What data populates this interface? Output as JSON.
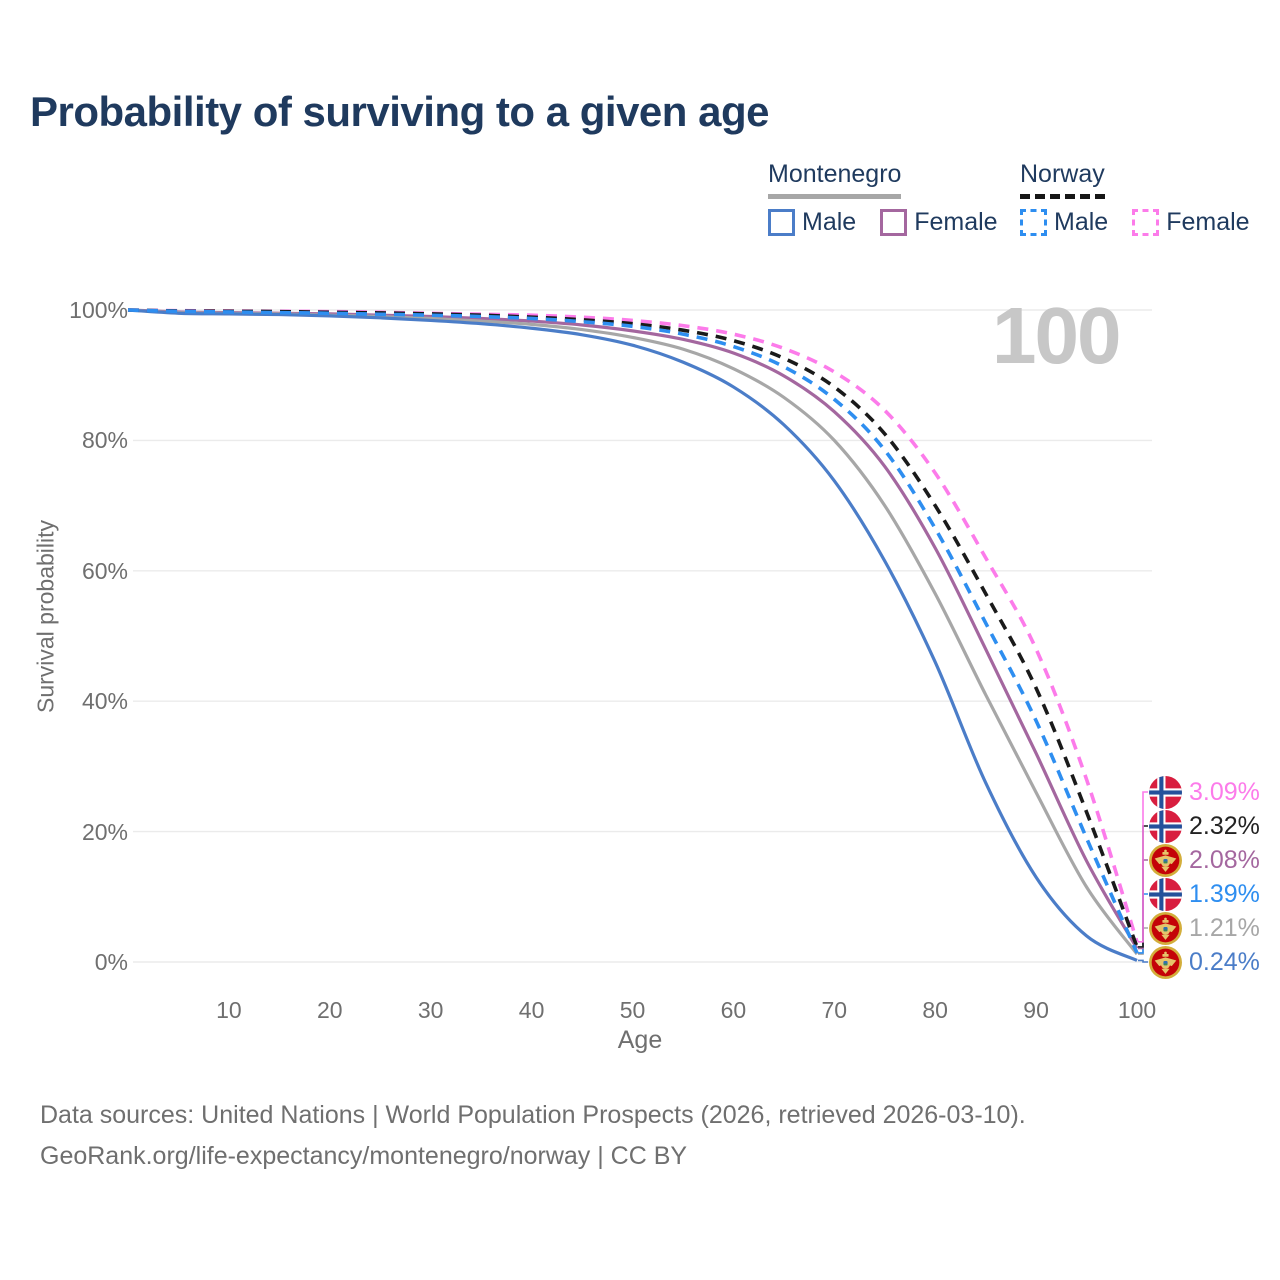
{
  "colors": {
    "title": "#1f3a5e",
    "axis_text": "#6f6f6f",
    "gridline": "#ebebeb",
    "watermark": "#c7c7c7",
    "legend_text": "#1f3a5e",
    "montenegro_underline": "#a7a7a7",
    "norway_underline": "#161616"
  },
  "legend": {
    "groups": [
      {
        "label": "Montenegro",
        "line_style": "solid",
        "items": [
          {
            "label": "Male",
            "color": "#4b7dc8",
            "dashed": false
          },
          {
            "label": "Female",
            "color": "#a4679f",
            "dashed": false
          }
        ]
      },
      {
        "label": "Norway",
        "line_style": "dashed",
        "items": [
          {
            "label": "Male",
            "color": "#2e8ef0",
            "dashed": true
          },
          {
            "label": "Female",
            "color": "#fc7bea",
            "dashed": true
          }
        ]
      }
    ]
  },
  "footer": {
    "line1": "Data sources: United Nations | World Population Prospects (2026, retrieved 2026-03-10).",
    "line2": "GeoRank.org/life-expectancy/montenegro/norway | CC BY"
  },
  "chart_data": {
    "type": "line",
    "title": "Probability of surviving to a given age",
    "xlabel": "Age",
    "ylabel": "Survival probability",
    "watermark": "100",
    "xlim": [
      0,
      100
    ],
    "ylim": [
      0,
      100
    ],
    "x_ticks": [
      10,
      20,
      30,
      40,
      50,
      60,
      70,
      80,
      90,
      100
    ],
    "y_ticks": [
      0,
      20,
      40,
      60,
      80,
      100
    ],
    "y_tick_suffix": "%",
    "grid": "horizontal",
    "legend_position": "top-right",
    "x": [
      0,
      5,
      10,
      15,
      20,
      25,
      30,
      35,
      40,
      45,
      50,
      55,
      60,
      65,
      70,
      75,
      80,
      85,
      90,
      95,
      100
    ],
    "series": [
      {
        "name": "Norway Female",
        "country": "norway",
        "sex": "Female",
        "color": "#fc7bea",
        "dashed": true,
        "values": [
          100,
          99.9,
          99.85,
          99.8,
          99.75,
          99.65,
          99.5,
          99.35,
          99.2,
          98.9,
          98.4,
          97.6,
          96.3,
          94.1,
          90.5,
          84.6,
          75.0,
          62.0,
          48.0,
          28.0,
          3.09
        ],
        "end_value": 3.09,
        "end_label": "3.09%"
      },
      {
        "name": "Norway Total",
        "country": "norway",
        "sex": "Total",
        "color": "#1a1a1a",
        "dashed": true,
        "values": [
          100,
          99.85,
          99.8,
          99.75,
          99.65,
          99.55,
          99.4,
          99.2,
          98.9,
          98.5,
          97.9,
          96.9,
          95.3,
          92.6,
          88.2,
          81.0,
          70.0,
          56.5,
          42.0,
          23.0,
          2.32
        ],
        "end_value": 2.32,
        "end_label": "2.32%"
      },
      {
        "name": "Montenegro Female",
        "country": "montenegro",
        "sex": "Female",
        "color": "#a4679f",
        "dashed": false,
        "values": [
          100,
          99.7,
          99.6,
          99.5,
          99.4,
          99.2,
          99.0,
          98.7,
          98.3,
          97.7,
          96.8,
          95.5,
          93.4,
          89.9,
          84.4,
          76.0,
          63.5,
          48.0,
          32.0,
          15.5,
          2.08
        ],
        "end_value": 2.08,
        "end_label": "2.08%"
      },
      {
        "name": "Norway Male",
        "country": "norway",
        "sex": "Male",
        "color": "#2e8ef0",
        "dashed": true,
        "values": [
          100,
          99.8,
          99.7,
          99.6,
          99.5,
          99.35,
          99.2,
          99.0,
          98.7,
          98.2,
          97.5,
          96.3,
          94.4,
          91.3,
          86.3,
          78.5,
          66.5,
          52.0,
          37.0,
          19.0,
          1.39
        ],
        "end_value": 1.39,
        "end_label": "1.39%"
      },
      {
        "name": "Montenegro Total",
        "country": "montenegro",
        "sex": "Total",
        "color": "#a7a7a7",
        "dashed": false,
        "values": [
          100,
          99.6,
          99.5,
          99.4,
          99.2,
          99.0,
          98.7,
          98.3,
          97.8,
          97.0,
          95.8,
          94.0,
          91.0,
          86.6,
          80.0,
          70.0,
          56.5,
          41.0,
          26.0,
          11.5,
          1.21
        ],
        "end_value": 1.21,
        "end_label": "1.21%"
      },
      {
        "name": "Montenegro Male",
        "country": "montenegro",
        "sex": "Male",
        "color": "#4b7dc8",
        "dashed": false,
        "values": [
          100,
          99.5,
          99.4,
          99.3,
          99.1,
          98.8,
          98.4,
          97.9,
          97.2,
          96.2,
          94.6,
          92.0,
          88.2,
          82.4,
          73.8,
          61.5,
          46.0,
          27.5,
          13.0,
          4.0,
          0.24
        ],
        "end_value": 0.24,
        "end_label": "0.24%"
      }
    ]
  }
}
